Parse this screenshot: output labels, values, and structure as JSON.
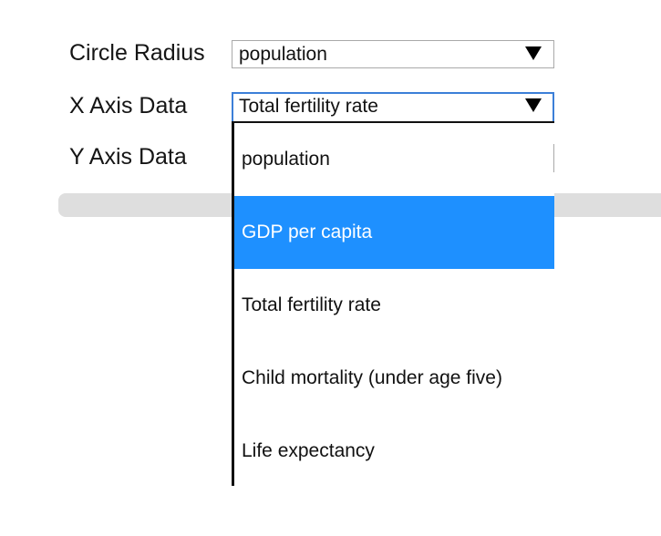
{
  "form": {
    "circle_radius": {
      "label": "Circle Radius",
      "selected": "population"
    },
    "x_axis": {
      "label": "X Axis Data",
      "selected": "Total fertility rate"
    },
    "y_axis": {
      "label": "Y Axis Data"
    }
  },
  "dropdown": {
    "options": [
      "population",
      "GDP per capita",
      "Total fertility rate",
      "Child mortality (under age five)",
      "Life expectancy"
    ],
    "highlighted_index": 1
  },
  "colors": {
    "highlight": "#1e90ff",
    "focus_border": "#3c7fd8",
    "slider_track": "#dedede"
  },
  "icons": {
    "select_arrow": "triangle-down-icon"
  }
}
